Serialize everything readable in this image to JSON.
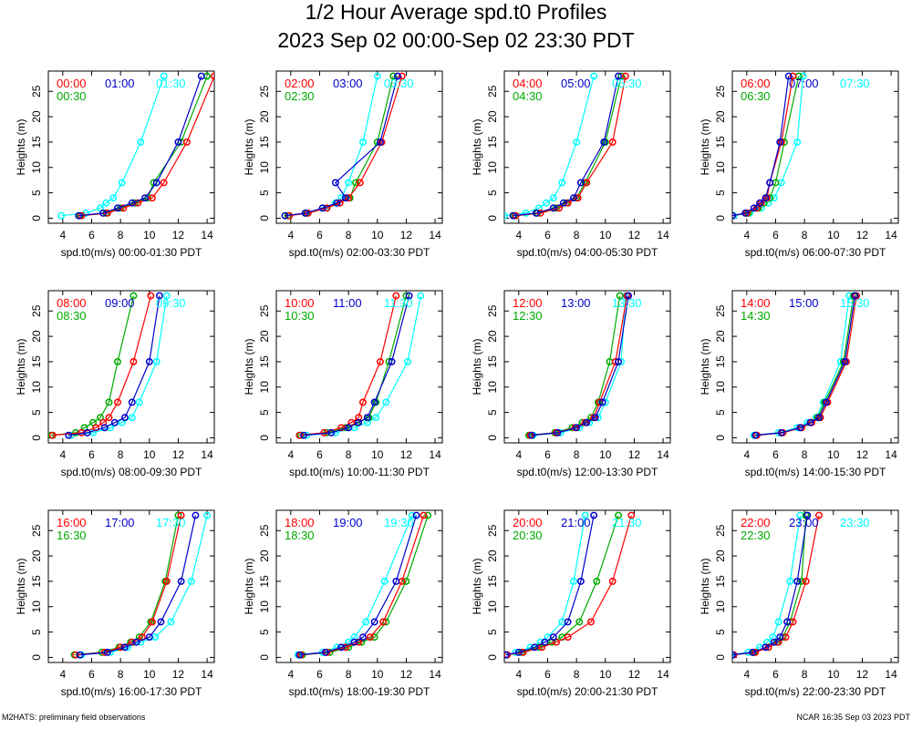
{
  "title": "1/2 Hour Average spd.t0 Profiles",
  "subtitle": "2023 Sep 02 00:00-Sep 02 23:30 PDT",
  "footer_left": "M2HATS: preliminary field observations",
  "footer_right": "NCAR 16:35 Sep 03 2023 PDT",
  "colors": {
    "red": "#ff0000",
    "blue": "#0000cc",
    "cyan": "#00ffff",
    "green": "#00aa00"
  },
  "chart_data": [
    {
      "type": "line",
      "xlabel": "spd.t0(m/s) 00:00-01:30 PDT",
      "ylabel": "Heights (m)",
      "xlim": [
        3,
        14.5
      ],
      "ylim": [
        -1,
        29
      ],
      "xticks": [
        4,
        6,
        8,
        10,
        12,
        14
      ],
      "yticks": [
        0,
        5,
        10,
        15,
        20,
        25
      ],
      "heights": [
        0.5,
        1,
        2,
        3,
        4,
        7,
        15,
        28
      ],
      "series": [
        {
          "name": "00:00",
          "values": [
            5.3,
            7.1,
            8.2,
            9.2,
            10.2,
            11.0,
            12.6,
            14.5
          ]
        },
        {
          "name": "01:00",
          "values": [
            5.1,
            6.8,
            7.8,
            8.8,
            9.7,
            10.5,
            12.0,
            13.6
          ]
        },
        {
          "name": "01:30",
          "values": [
            3.9,
            5.6,
            6.6,
            7.0,
            7.5,
            8.1,
            9.4,
            11.0
          ]
        },
        {
          "name": "00:30",
          "values": [
            5.2,
            7.0,
            8.0,
            9.0,
            9.9,
            10.3,
            12.2,
            14.0
          ]
        }
      ]
    },
    {
      "type": "line",
      "xlabel": "spd.t0(m/s) 02:00-03:30 PDT",
      "ylabel": "Heights (m)",
      "xlim": [
        3,
        14.5
      ],
      "ylim": [
        -1,
        29
      ],
      "xticks": [
        4,
        6,
        8,
        10,
        12,
        14
      ],
      "yticks": [
        0,
        5,
        10,
        15,
        20,
        25
      ],
      "heights": [
        0.5,
        1,
        2,
        3,
        4,
        7,
        15,
        28
      ],
      "series": [
        {
          "name": "02:00",
          "values": [
            3.9,
            5.2,
            6.5,
            7.4,
            8.0,
            8.8,
            10.3,
            11.7
          ]
        },
        {
          "name": "03:00",
          "values": [
            3.6,
            5.0,
            6.2,
            7.2,
            7.8,
            7.1,
            10.2,
            11.4
          ]
        },
        {
          "name": "03:30",
          "values": [
            3.8,
            5.1,
            6.4,
            7.1,
            7.5,
            8.0,
            9.0,
            10.0
          ]
        },
        {
          "name": "02:30",
          "values": [
            3.8,
            5.1,
            6.5,
            7.4,
            8.1,
            8.5,
            10.0,
            11.1
          ]
        }
      ]
    },
    {
      "type": "line",
      "xlabel": "spd.t0(m/s) 04:00-05:30 PDT",
      "ylabel": "Heights (m)",
      "xlim": [
        3,
        14.5
      ],
      "ylim": [
        -1,
        29
      ],
      "xticks": [
        4,
        6,
        8,
        10,
        12,
        14
      ],
      "yticks": [
        0,
        5,
        10,
        15,
        20,
        25
      ],
      "heights": [
        0.5,
        1,
        2,
        3,
        4,
        7,
        15,
        28
      ],
      "series": [
        {
          "name": "04:00",
          "values": [
            3.8,
            5.5,
            6.8,
            7.4,
            8.1,
            8.7,
            10.5,
            11.4
          ]
        },
        {
          "name": "05:00",
          "values": [
            3.6,
            5.2,
            6.4,
            7.1,
            7.8,
            8.3,
            9.9,
            10.9
          ]
        },
        {
          "name": "05:30",
          "values": [
            3.0,
            4.5,
            5.4,
            5.9,
            6.4,
            7.0,
            8.0,
            9.2
          ]
        },
        {
          "name": "04:30",
          "values": [
            3.7,
            5.3,
            6.6,
            7.3,
            8.0,
            8.6,
            10.0,
            11.1
          ]
        }
      ]
    },
    {
      "type": "line",
      "xlabel": "spd.t0(m/s) 06:00-07:30 PDT",
      "ylabel": "Heights (m)",
      "xlim": [
        3,
        14.5
      ],
      "ylim": [
        -1,
        29
      ],
      "xticks": [
        4,
        6,
        8,
        10,
        12,
        14
      ],
      "yticks": [
        0,
        5,
        10,
        15,
        20,
        25
      ],
      "heights": [
        0.5,
        1,
        2,
        3,
        4,
        7,
        15,
        28
      ],
      "series": [
        {
          "name": "06:00",
          "values": [
            3.0,
            4.0,
            4.7,
            5.0,
            5.4,
            5.6,
            6.4,
            7.2
          ]
        },
        {
          "name": "07:00",
          "values": [
            3.0,
            3.9,
            4.5,
            4.9,
            5.3,
            5.6,
            6.3,
            6.9
          ]
        },
        {
          "name": "07:30",
          "values": [
            3.1,
            4.2,
            5.0,
            5.5,
            5.9,
            6.4,
            7.5,
            7.9
          ]
        },
        {
          "name": "06:30",
          "values": [
            3.0,
            4.1,
            4.8,
            5.2,
            5.6,
            6.0,
            6.6,
            7.6
          ]
        }
      ]
    },
    {
      "type": "line",
      "xlabel": "spd.t0(m/s) 08:00-09:30 PDT",
      "ylabel": "Heights (m)",
      "xlim": [
        3,
        14.5
      ],
      "ylim": [
        -1,
        29
      ],
      "xticks": [
        4,
        6,
        8,
        10,
        12,
        14
      ],
      "yticks": [
        0,
        5,
        10,
        15,
        20,
        25
      ],
      "heights": [
        0.5,
        1,
        2,
        3,
        4,
        7,
        15,
        28
      ],
      "series": [
        {
          "name": "08:00",
          "values": [
            3.3,
            5.3,
            6.3,
            6.8,
            7.2,
            7.8,
            8.9,
            10.1
          ]
        },
        {
          "name": "09:00",
          "values": [
            4.4,
            5.7,
            6.9,
            7.6,
            8.3,
            8.8,
            10.0,
            10.7
          ]
        },
        {
          "name": "09:30",
          "values": [
            4.6,
            6.1,
            7.3,
            8.1,
            8.8,
            9.3,
            10.5,
            11.2
          ]
        },
        {
          "name": "08:30",
          "values": [
            3.2,
            4.9,
            5.5,
            6.1,
            6.6,
            7.2,
            7.8,
            8.9
          ]
        }
      ]
    },
    {
      "type": "line",
      "xlabel": "spd.t0(m/s) 10:00-11:30 PDT",
      "ylabel": "Heights (m)",
      "xlim": [
        3,
        14.5
      ],
      "ylim": [
        -1,
        29
      ],
      "xticks": [
        4,
        6,
        8,
        10,
        12,
        14
      ],
      "yticks": [
        0,
        5,
        10,
        15,
        20,
        25
      ],
      "heights": [
        0.5,
        1,
        2,
        3,
        4,
        7,
        15,
        28
      ],
      "series": [
        {
          "name": "10:00",
          "values": [
            4.6,
            6.3,
            7.5,
            8.2,
            8.7,
            9.0,
            10.2,
            11.3
          ]
        },
        {
          "name": "11:00",
          "values": [
            4.9,
            6.8,
            8.0,
            8.7,
            9.3,
            9.8,
            11.0,
            12.2
          ]
        },
        {
          "name": "11:30",
          "values": [
            5.1,
            7.1,
            8.4,
            9.3,
            9.9,
            10.6,
            12.1,
            13.0
          ]
        },
        {
          "name": "10:30",
          "values": [
            4.7,
            6.5,
            7.8,
            8.6,
            9.4,
            9.9,
            10.8,
            12.0
          ]
        }
      ]
    },
    {
      "type": "line",
      "xlabel": "spd.t0(m/s) 12:00-13:30 PDT",
      "ylabel": "Heights (m)",
      "xlim": [
        3,
        14.5
      ],
      "ylim": [
        -1,
        29
      ],
      "xticks": [
        4,
        6,
        8,
        10,
        12,
        14
      ],
      "yticks": [
        0,
        5,
        10,
        15,
        20,
        25
      ],
      "heights": [
        0.5,
        1,
        2,
        3,
        4,
        7,
        15,
        28
      ],
      "series": [
        {
          "name": "12:00",
          "values": [
            4.8,
            6.6,
            7.9,
            8.6,
            9.2,
            9.6,
            10.7,
            11.5
          ]
        },
        {
          "name": "13:00",
          "values": [
            4.9,
            6.7,
            8.0,
            8.7,
            9.3,
            9.8,
            10.9,
            11.6
          ]
        },
        {
          "name": "13:30",
          "values": [
            5.0,
            6.9,
            8.2,
            8.9,
            9.5,
            10.0,
            11.1,
            11.4
          ]
        },
        {
          "name": "12:30",
          "values": [
            4.7,
            6.5,
            7.7,
            8.4,
            9.0,
            9.5,
            10.3,
            11.0
          ]
        }
      ]
    },
    {
      "type": "line",
      "xlabel": "spd.t0(m/s) 14:00-15:30 PDT",
      "ylabel": "Heights (m)",
      "xlim": [
        3,
        14.5
      ],
      "ylim": [
        -1,
        29
      ],
      "xticks": [
        4,
        6,
        8,
        10,
        12,
        14
      ],
      "yticks": [
        0,
        5,
        10,
        15,
        20,
        25
      ],
      "heights": [
        0.5,
        1,
        2,
        3,
        4,
        7,
        15,
        28
      ],
      "series": [
        {
          "name": "14:00",
          "values": [
            4.7,
            6.5,
            7.8,
            8.5,
            9.1,
            9.6,
            10.9,
            11.6
          ]
        },
        {
          "name": "15:00",
          "values": [
            4.6,
            6.4,
            7.7,
            8.4,
            9.0,
            9.5,
            10.8,
            11.5
          ]
        },
        {
          "name": "15:30",
          "values": [
            4.5,
            6.2,
            7.5,
            8.2,
            8.8,
            9.3,
            10.5,
            11.1
          ]
        },
        {
          "name": "14:30",
          "values": [
            4.6,
            6.4,
            7.7,
            8.4,
            8.9,
            9.4,
            10.7,
            11.4
          ]
        }
      ]
    },
    {
      "type": "line",
      "xlabel": "spd.t0(m/s) 16:00-17:30 PDT",
      "ylabel": "Heights (m)",
      "xlim": [
        3,
        14.5
      ],
      "ylim": [
        -1,
        29
      ],
      "xticks": [
        4,
        6,
        8,
        10,
        12,
        14
      ],
      "yticks": [
        0,
        5,
        10,
        15,
        20,
        25
      ],
      "heights": [
        0.5,
        1,
        2,
        3,
        4,
        7,
        15,
        28
      ],
      "series": [
        {
          "name": "16:00",
          "values": [
            4.9,
            6.9,
            8.0,
            8.8,
            9.5,
            10.2,
            11.2,
            12.2
          ]
        },
        {
          "name": "17:00",
          "values": [
            5.2,
            7.1,
            8.3,
            9.1,
            10.0,
            10.8,
            12.2,
            13.2
          ]
        },
        {
          "name": "17:30",
          "values": [
            5.3,
            7.3,
            8.5,
            9.4,
            10.4,
            11.5,
            12.9,
            14.0
          ]
        },
        {
          "name": "16:30",
          "values": [
            4.8,
            6.7,
            7.9,
            8.7,
            9.3,
            10.1,
            11.1,
            12.0
          ]
        }
      ]
    },
    {
      "type": "line",
      "xlabel": "spd.t0(m/s) 18:00-19:30 PDT",
      "ylabel": "Heights (m)",
      "xlim": [
        3,
        14.5
      ],
      "ylim": [
        -1,
        29
      ],
      "xticks": [
        4,
        6,
        8,
        10,
        12,
        14
      ],
      "yticks": [
        0,
        5,
        10,
        15,
        20,
        25
      ],
      "heights": [
        0.5,
        1,
        2,
        3,
        4,
        7,
        15,
        28
      ],
      "series": [
        {
          "name": "18:00",
          "values": [
            4.7,
            6.5,
            7.8,
            8.7,
            9.5,
            10.4,
            11.7,
            13.2
          ]
        },
        {
          "name": "19:00",
          "values": [
            4.6,
            6.4,
            7.5,
            8.4,
            9.0,
            9.8,
            11.3,
            12.7
          ]
        },
        {
          "name": "19:30",
          "values": [
            4.5,
            6.2,
            7.2,
            8.0,
            8.4,
            9.2,
            10.5,
            12.4
          ]
        },
        {
          "name": "18:30",
          "values": [
            4.8,
            6.7,
            8.0,
            8.9,
            9.8,
            10.6,
            12.0,
            13.5
          ]
        }
      ]
    },
    {
      "type": "line",
      "xlabel": "spd.t0(m/s) 20:00-21:30 PDT",
      "ylabel": "Heights (m)",
      "xlim": [
        3,
        14.5
      ],
      "ylim": [
        -1,
        29
      ],
      "xticks": [
        4,
        6,
        8,
        10,
        12,
        14
      ],
      "yticks": [
        0,
        5,
        10,
        15,
        20,
        25
      ],
      "heights": [
        0.5,
        1,
        2,
        3,
        4,
        7,
        15,
        28
      ],
      "series": [
        {
          "name": "20:00",
          "values": [
            3.2,
            4.3,
            5.6,
            6.6,
            7.4,
            9.0,
            10.5,
            11.8
          ]
        },
        {
          "name": "21:00",
          "values": [
            3.1,
            4.0,
            5.1,
            5.8,
            6.4,
            7.4,
            8.3,
            9.2
          ]
        },
        {
          "name": "21:30",
          "values": [
            3.1,
            3.8,
            4.8,
            5.5,
            6.0,
            7.0,
            7.8,
            8.6
          ]
        },
        {
          "name": "20:30",
          "values": [
            3.2,
            4.2,
            5.4,
            6.3,
            7.0,
            8.2,
            9.4,
            10.9
          ]
        }
      ]
    },
    {
      "type": "line",
      "xlabel": "spd.t0(m/s) 22:00-23:30 PDT",
      "ylabel": "Heights (m)",
      "xlim": [
        3,
        14.5
      ],
      "ylim": [
        -1,
        29
      ],
      "xticks": [
        4,
        6,
        8,
        10,
        12,
        14
      ],
      "yticks": [
        0,
        5,
        10,
        15,
        20,
        25
      ],
      "heights": [
        0.5,
        1,
        2,
        3,
        4,
        7,
        15,
        28
      ],
      "series": [
        {
          "name": "22:00",
          "values": [
            3.1,
            4.6,
            5.5,
            6.2,
            6.7,
            7.2,
            8.1,
            9.0
          ]
        },
        {
          "name": "23:00",
          "values": [
            3.0,
            4.4,
            5.3,
            5.9,
            6.3,
            6.8,
            7.5,
            8.2
          ]
        },
        {
          "name": "23:30",
          "values": [
            2.9,
            4.1,
            4.9,
            5.4,
            5.8,
            6.2,
            7.0,
            7.7
          ]
        },
        {
          "name": "22:30",
          "values": [
            3.0,
            4.5,
            5.5,
            6.1,
            6.5,
            7.0,
            7.8,
            8.1
          ]
        }
      ]
    }
  ]
}
